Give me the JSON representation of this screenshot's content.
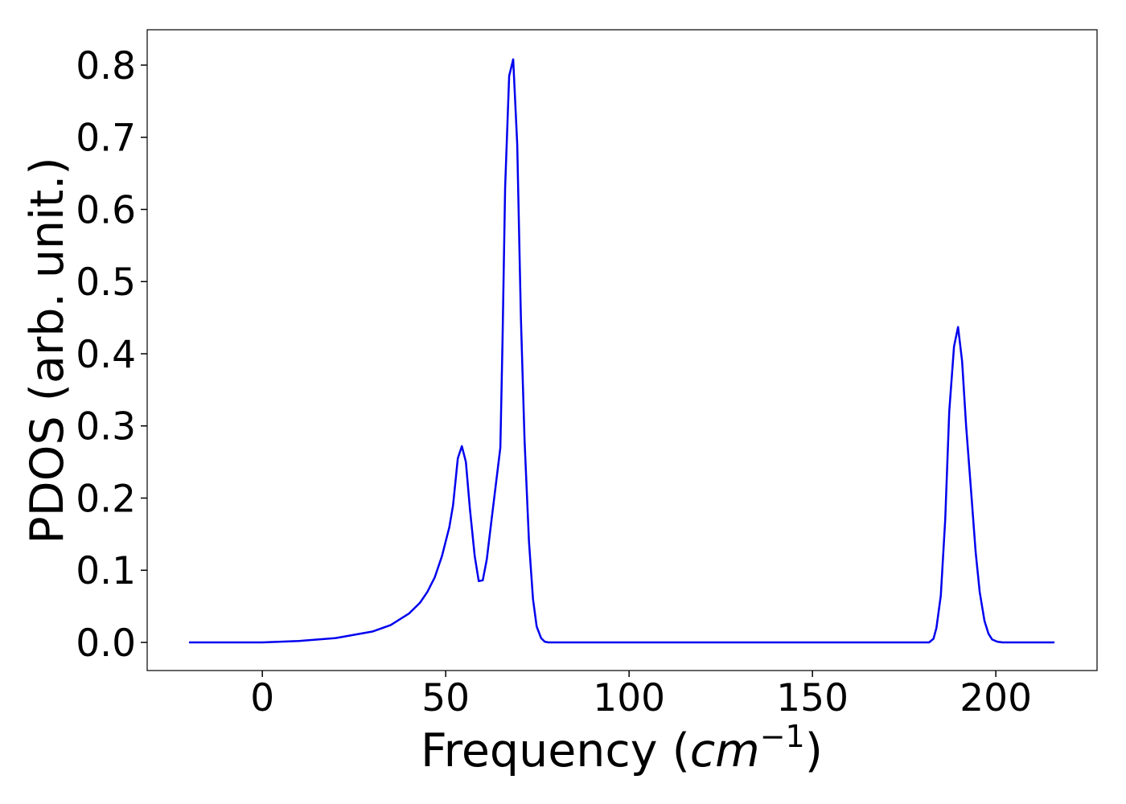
{
  "chart_data": {
    "type": "line",
    "xlabel": {
      "text": "Frequency (",
      "unit": "cm",
      "exponent": "−1",
      "close": ")"
    },
    "ylabel": "PDOS (arb. unit.)",
    "xlim": [
      -31.4,
      227.6
    ],
    "ylim": [
      -0.039,
      0.849
    ],
    "xticks": [
      0,
      50,
      100,
      150,
      200
    ],
    "yticks": [
      {
        "value": 0,
        "label": "0.0"
      },
      0.1,
      0.2,
      0.3,
      0.4,
      0.5,
      0.6,
      0.7,
      0.8
    ],
    "series": [
      {
        "color": "#0000ee",
        "x": [
          -20,
          0,
          10,
          20,
          30,
          35,
          40,
          43,
          45,
          47,
          49,
          50,
          51,
          52,
          53.3,
          54.4,
          55.5,
          56.6,
          57.9,
          59,
          60.1,
          61.2,
          62.5,
          64.9,
          65.5,
          66.2,
          67.3,
          68.4,
          69.5,
          70.5,
          71.5,
          72.7,
          73.8,
          74.8,
          76,
          77,
          78,
          181.8,
          183,
          183.8,
          185,
          186.2,
          187.3,
          188.6,
          189.7,
          190.8,
          191.9,
          193.4,
          194.5,
          195.6,
          196.9,
          198,
          199,
          200.4,
          201.8,
          216
        ],
        "values": [
          0,
          0,
          0.002,
          0.006,
          0.015,
          0.024,
          0.04,
          0.055,
          0.07,
          0.09,
          0.12,
          0.14,
          0.16,
          0.19,
          0.255,
          0.272,
          0.25,
          0.185,
          0.12,
          0.085,
          0.086,
          0.115,
          0.17,
          0.27,
          0.42,
          0.63,
          0.785,
          0.808,
          0.69,
          0.45,
          0.28,
          0.14,
          0.06,
          0.022,
          0.006,
          0.001,
          0,
          0,
          0.005,
          0.02,
          0.065,
          0.17,
          0.32,
          0.41,
          0.437,
          0.39,
          0.3,
          0.2,
          0.125,
          0.07,
          0.03,
          0.012,
          0.004,
          0.001,
          0,
          0
        ]
      }
    ]
  }
}
